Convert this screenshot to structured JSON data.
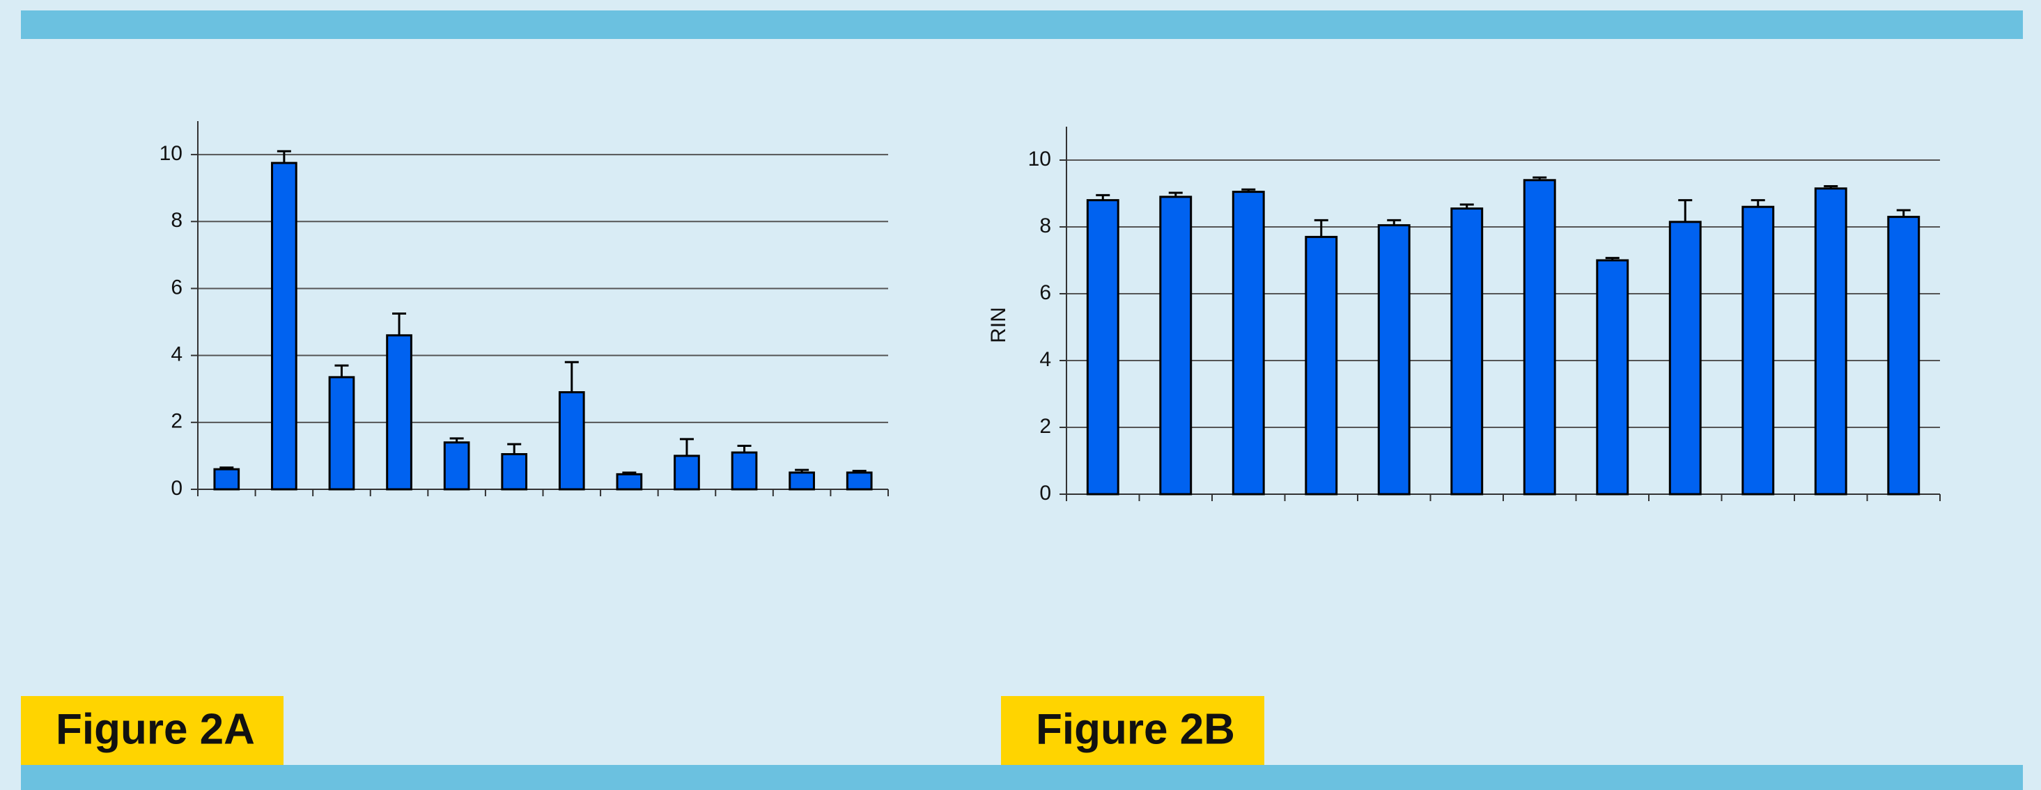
{
  "chart_data": [
    {
      "type": "bar",
      "panel_label": "Figure 2A",
      "categories": [
        null,
        null,
        null,
        null,
        null,
        null,
        null,
        null,
        null,
        null,
        null,
        null
      ],
      "values": [
        0.6,
        9.75,
        3.35,
        4.6,
        1.4,
        1.05,
        2.9,
        0.45,
        1.0,
        1.1,
        0.5,
        0.5
      ],
      "errors": [
        0.05,
        0.35,
        0.35,
        0.65,
        0.12,
        0.3,
        0.9,
        0.05,
        0.5,
        0.2,
        0.08,
        0.05
      ],
      "color": "#0062f0",
      "ylim": [
        0,
        11
      ],
      "yticks": [
        0,
        2,
        4,
        6,
        8,
        10
      ],
      "grid": true
    },
    {
      "type": "bar",
      "panel_label": "Figure 2B",
      "ylabel": "RIN",
      "categories": [
        null,
        null,
        null,
        null,
        null,
        null,
        null,
        null,
        null,
        null,
        null,
        null
      ],
      "values": [
        8.8,
        8.9,
        9.05,
        7.7,
        8.05,
        8.55,
        9.4,
        7.0,
        8.15,
        8.6,
        9.15,
        8.3
      ],
      "errors": [
        0.15,
        0.12,
        0.07,
        0.5,
        0.15,
        0.12,
        0.08,
        0.07,
        0.65,
        0.2,
        0.07,
        0.2
      ],
      "color": "#0062f0",
      "ylim": [
        0,
        11
      ],
      "yticks": [
        0,
        2,
        4,
        6,
        8,
        10
      ],
      "grid": true
    }
  ]
}
